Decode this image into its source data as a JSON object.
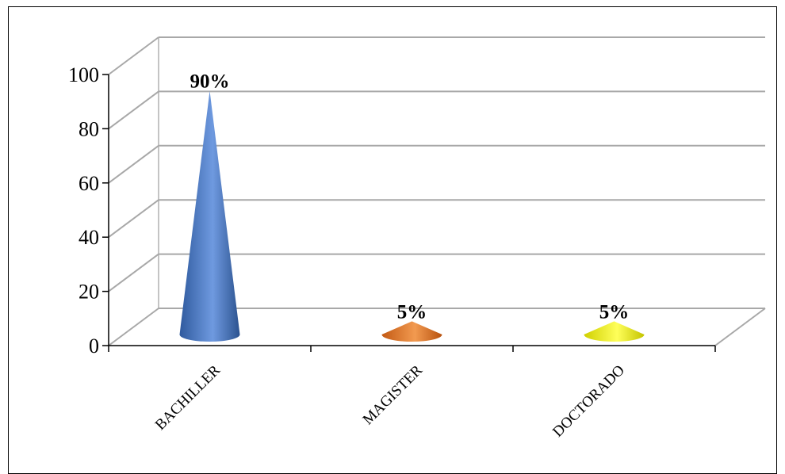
{
  "chart_data": {
    "type": "bar",
    "subtype": "3d-cone",
    "categories": [
      "BACHILLER",
      "MAGISTER",
      "DOCTORADO"
    ],
    "values": [
      90,
      5,
      5
    ],
    "data_labels": [
      "90%",
      "5%",
      "5%"
    ],
    "colors": [
      "#4a78c0",
      "#e0782e",
      "#e8e800"
    ],
    "y_ticks": [
      "0",
      "20",
      "40",
      "60",
      "80",
      "100"
    ],
    "ylim": [
      0,
      100
    ],
    "grid": true,
    "legend": "none",
    "title": "",
    "xlabel": "",
    "ylabel": ""
  }
}
